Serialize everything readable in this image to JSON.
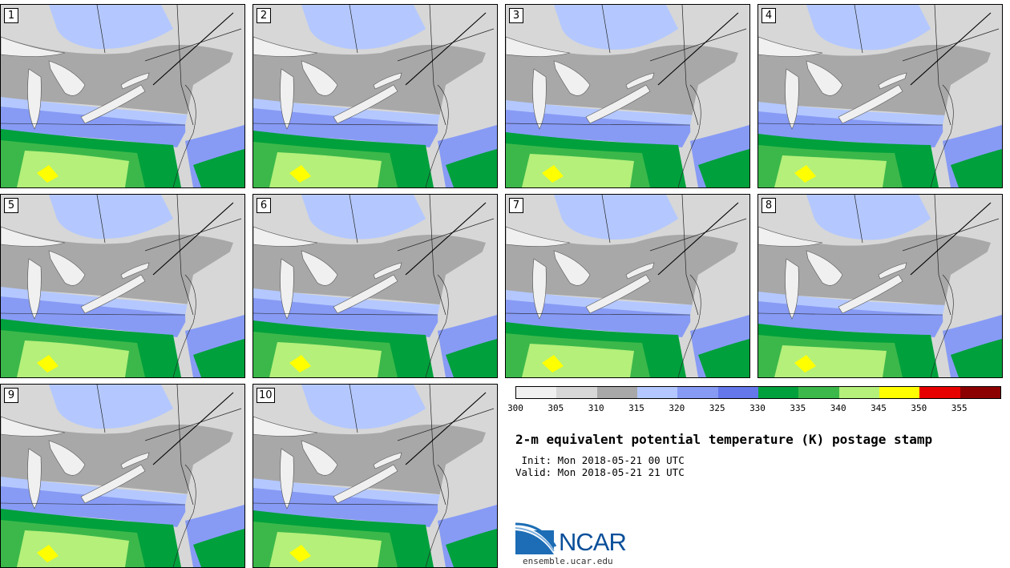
{
  "panels": [
    {
      "label": "1"
    },
    {
      "label": "2"
    },
    {
      "label": "3"
    },
    {
      "label": "4"
    },
    {
      "label": "5"
    },
    {
      "label": "6"
    },
    {
      "label": "7"
    },
    {
      "label": "8"
    },
    {
      "label": "9"
    },
    {
      "label": "10"
    }
  ],
  "colorbar": {
    "ticks": [
      "300",
      "305",
      "310",
      "315",
      "320",
      "325",
      "330",
      "335",
      "340",
      "345",
      "350",
      "355"
    ],
    "colors": [
      "#f0f0f0",
      "#d7d7d7",
      "#a8a8a8",
      "#b4c8ff",
      "#879bf5",
      "#6477eb",
      "#00a03c",
      "#3cb84a",
      "#b4f07a",
      "#ffff00",
      "#e60000",
      "#8c0000"
    ]
  },
  "title": "2-m equivalent potential temperature (K) postage stamp",
  "init": " Init: Mon 2018-05-21 00 UTC",
  "valid": "Valid: Mon 2018-05-21 21 UTC",
  "logo": {
    "text": "NCAR",
    "url": "ensemble.ucar.edu"
  }
}
